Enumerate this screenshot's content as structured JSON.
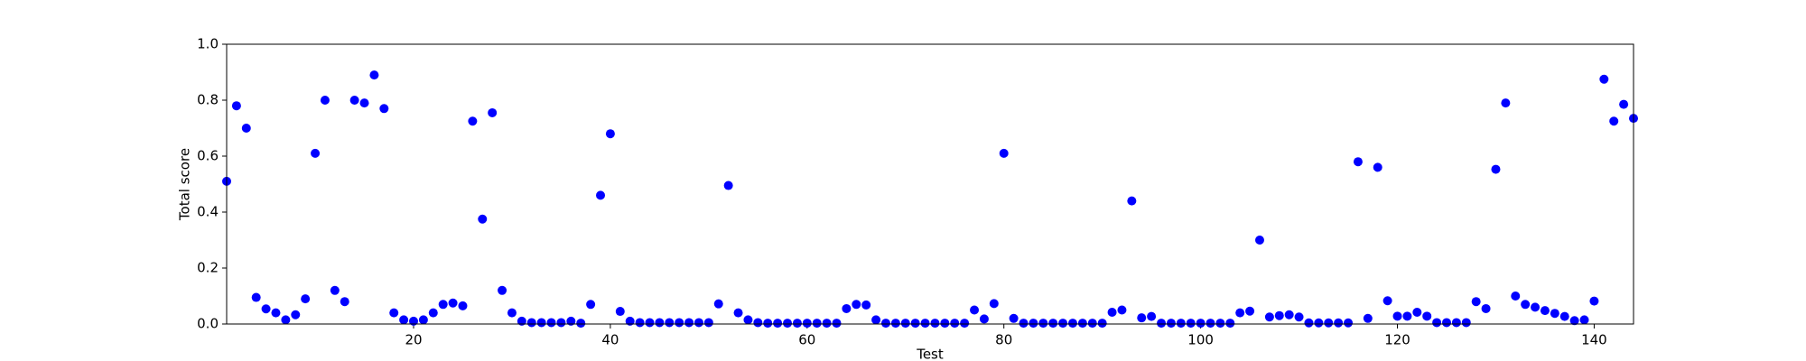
{
  "chart_data": {
    "type": "scatter",
    "xlabel": "Test",
    "ylabel": "Total score",
    "color": "#0000ff",
    "x": [
      1,
      2,
      3,
      4,
      5,
      6,
      7,
      8,
      9,
      10,
      11,
      12,
      13,
      14,
      15,
      16,
      17,
      18,
      19,
      20,
      21,
      22,
      23,
      24,
      25,
      26,
      27,
      28,
      29,
      30,
      31,
      32,
      33,
      34,
      35,
      36,
      37,
      38,
      39,
      40,
      41,
      42,
      43,
      44,
      45,
      46,
      47,
      48,
      49,
      50,
      51,
      52,
      53,
      54,
      55,
      56,
      57,
      58,
      59,
      60,
      61,
      62,
      63,
      64,
      65,
      66,
      67,
      68,
      69,
      70,
      71,
      72,
      73,
      74,
      75,
      76,
      77,
      78,
      79,
      80,
      81,
      82,
      83,
      84,
      85,
      86,
      87,
      88,
      89,
      90,
      91,
      92,
      93,
      94,
      95,
      96,
      97,
      98,
      99,
      100,
      101,
      102,
      103,
      104,
      105,
      106,
      107,
      108,
      109,
      110,
      111,
      112,
      113,
      114,
      115,
      116,
      117,
      118,
      119,
      120,
      121,
      122,
      123,
      124,
      125,
      126,
      127,
      128,
      129,
      130,
      131,
      132,
      133,
      134,
      135,
      136,
      137,
      138,
      139,
      140,
      141,
      142,
      143,
      144
    ],
    "values": [
      0.51,
      0.78,
      0.7,
      0.095,
      0.054,
      0.04,
      0.015,
      0.033,
      0.09,
      0.61,
      0.8,
      0.12,
      0.08,
      0.8,
      0.79,
      0.89,
      0.77,
      0.04,
      0.015,
      0.01,
      0.015,
      0.04,
      0.07,
      0.075,
      0.065,
      0.725,
      0.375,
      0.755,
      0.12,
      0.04,
      0.01,
      0.005,
      0.005,
      0.005,
      0.005,
      0.01,
      0.003,
      0.07,
      0.46,
      0.68,
      0.045,
      0.01,
      0.005,
      0.005,
      0.005,
      0.005,
      0.005,
      0.005,
      0.005,
      0.005,
      0.072,
      0.495,
      0.04,
      0.015,
      0.005,
      0.003,
      0.003,
      0.003,
      0.003,
      0.003,
      0.003,
      0.003,
      0.003,
      0.055,
      0.07,
      0.068,
      0.015,
      0.003,
      0.003,
      0.003,
      0.003,
      0.003,
      0.003,
      0.003,
      0.003,
      0.003,
      0.05,
      0.018,
      0.073,
      0.61,
      0.02,
      0.003,
      0.003,
      0.003,
      0.003,
      0.003,
      0.003,
      0.003,
      0.003,
      0.003,
      0.042,
      0.05,
      0.44,
      0.022,
      0.027,
      0.003,
      0.003,
      0.003,
      0.003,
      0.003,
      0.003,
      0.003,
      0.003,
      0.04,
      0.046,
      0.3,
      0.025,
      0.03,
      0.033,
      0.025,
      0.004,
      0.004,
      0.004,
      0.004,
      0.004,
      0.58,
      0.02,
      0.56,
      0.083,
      0.028,
      0.028,
      0.042,
      0.028,
      0.005,
      0.005,
      0.005,
      0.005,
      0.08,
      0.055,
      0.553,
      0.79,
      0.1,
      0.07,
      0.06,
      0.048,
      0.038,
      0.027,
      0.012,
      0.015,
      0.082,
      0.875,
      0.725,
      0.785,
      0.735
    ],
    "xlim": [
      1,
      144
    ],
    "xticks": [
      20,
      40,
      60,
      80,
      100,
      120,
      140
    ],
    "ylim": [
      0,
      1
    ],
    "yticks": [
      {
        "value": 0,
        "label": "0.0"
      },
      {
        "value": 0.2,
        "label": "0.2"
      },
      {
        "value": 0.4,
        "label": "0.4"
      },
      {
        "value": 0.6,
        "label": "0.6"
      },
      {
        "value": 0.8,
        "label": "0.8"
      },
      {
        "value": 1,
        "label": "1.0"
      }
    ],
    "grid": false
  }
}
